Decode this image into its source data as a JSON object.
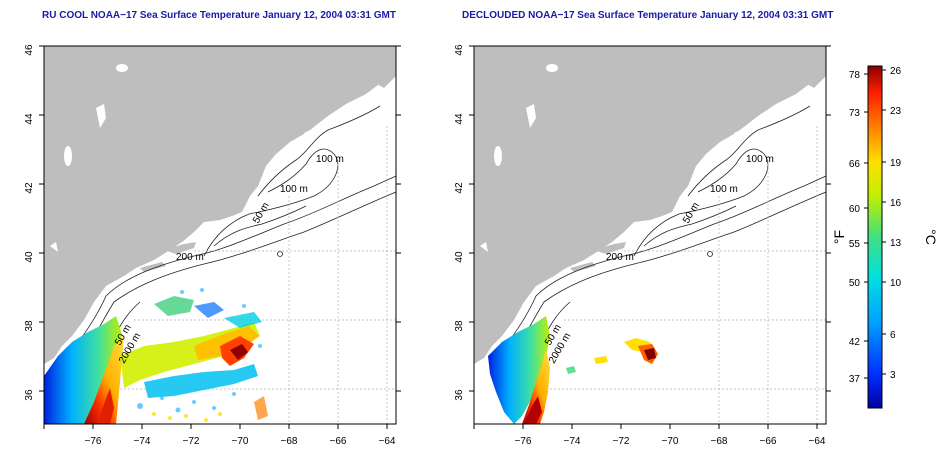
{
  "panels": [
    {
      "title": "RU COOL NOAA−17 Sea Surface Temperature January 12, 2004 03:31 GMT",
      "lon_ticks": [
        "−76",
        "−74",
        "−72",
        "−70",
        "−68",
        "−66",
        "−64"
      ],
      "lat_ticks": [
        "46",
        "44",
        "42",
        "40",
        "38",
        "36"
      ],
      "contour_labels": [
        "100 m",
        "100 m",
        "50 m",
        "200 m",
        "50 m",
        "2000 m"
      ]
    },
    {
      "title": "DECLOUDED NOAA−17 Sea Surface Temperature January 12, 2004 03:31 GMT",
      "lon_ticks": [
        "−76",
        "−74",
        "−72",
        "−70",
        "−68",
        "−66",
        "−64"
      ],
      "lat_ticks": [
        "46",
        "44",
        "42",
        "40",
        "38",
        "36"
      ],
      "contour_labels": [
        "100 m",
        "100 m",
        "50 m",
        "200 m",
        "50 m",
        "2000 m"
      ]
    }
  ],
  "colorbar": {
    "f_label": "°F",
    "c_label": "°C",
    "f_ticks": [
      "78",
      "73",
      "66",
      "60",
      "55",
      "50",
      "42",
      "37"
    ],
    "c_ticks": [
      "26",
      "23",
      "19",
      "16",
      "13",
      "10",
      "6",
      "3"
    ]
  },
  "colors": {
    "land": "#bebebe",
    "title": "#1a1aa8",
    "grid": "#b0b0b0"
  }
}
